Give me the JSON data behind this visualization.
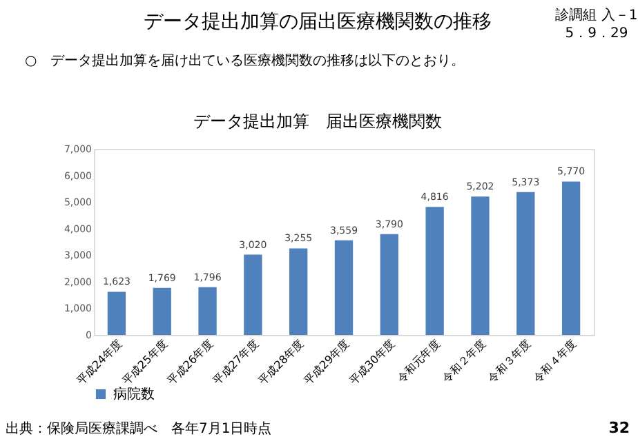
{
  "chart_data": {
    "type": "bar",
    "title": "データ提出加算の届出医療機関数の推移",
    "subtitle": "○　データ提出加算を届け出ている医療機関数の推移は以下のとおり。",
    "annotations": [
      "データ提出加算　届出医療機関数",
      "診調組 入－1",
      "5．9．29",
      "出典：保険局医療課調べ　各年7月1日時点",
      "32"
    ],
    "categories": [
      "平成24年度",
      "平成25年度",
      "平成26年度",
      "平成27年度",
      "平成28年度",
      "平成29年度",
      "平成30年度",
      "令和元年度",
      "令和２年度",
      "令和３年度",
      "令和４年度"
    ],
    "series": [
      {
        "name": "病院数",
        "color": "#4f81bd",
        "values": [
          1623,
          1769,
          1796,
          3020,
          3255,
          3559,
          3790,
          4816,
          5202,
          5373,
          5770
        ],
        "value_labels": [
          "1,623",
          "1,769",
          "1,796",
          "3,020",
          "3,255",
          "3,559",
          "3,790",
          "4,816",
          "5,202",
          "5,373",
          "5,770"
        ]
      }
    ],
    "ylim": [
      0,
      7000
    ],
    "yticks": [
      0,
      {
        "value": 1000,
        "label": "1,000"
      },
      {
        "value": 2000,
        "label": "2,000"
      },
      {
        "value": 3000,
        "label": "3,000"
      },
      {
        "value": 4000,
        "label": "4,000"
      },
      {
        "value": 5000,
        "label": "5,000"
      },
      {
        "value": 6000,
        "label": "6,000"
      },
      {
        "value": 7000,
        "label": "7,000"
      }
    ],
    "data_labels": true,
    "legend": "bottom"
  }
}
